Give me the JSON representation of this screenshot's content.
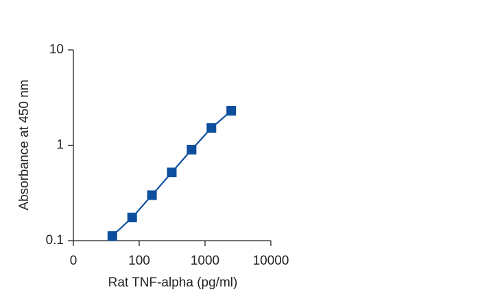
{
  "chart_data": {
    "type": "line",
    "x_label": "Rat TNF-alpha (pg/ml)",
    "y_label": "Absorbance at 450 nm",
    "x": [
      39.06,
      78.13,
      156.25,
      312.5,
      625,
      1250,
      2500
    ],
    "series": [
      {
        "name": "Rat TNF-alpha",
        "color": "#0d4f9e",
        "values": [
          0.112,
          0.175,
          0.3,
          0.52,
          0.9,
          1.52,
          2.3
        ]
      }
    ],
    "xlog": true,
    "ylog": true,
    "xlim": [
      10,
      10000
    ],
    "xticks": [
      {
        "value": 10,
        "label": "0"
      },
      100,
      1000,
      10000
    ],
    "ylim": [
      0.1,
      10
    ],
    "yticks": [
      0.1,
      1,
      10
    ]
  }
}
